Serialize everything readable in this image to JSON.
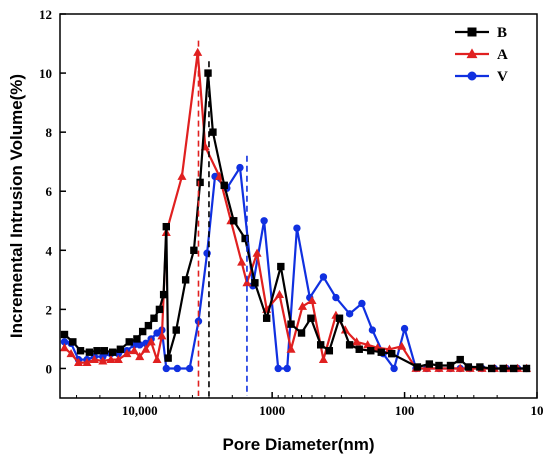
{
  "chart_data": {
    "type": "line",
    "title": "",
    "xlabel": "Pore Diameter(nm)",
    "ylabel": "Incremental Intrusion Volume(%)",
    "x_scale": "log",
    "x_reversed": true,
    "xlim": [
      10,
      40000
    ],
    "ylim": [
      -1,
      12
    ],
    "x_ticks": [
      {
        "value": 10000,
        "label": "10,000"
      },
      {
        "value": 1000,
        "label": "1000"
      },
      {
        "value": 100,
        "label": "100"
      },
      {
        "value": 10,
        "label": "10"
      }
    ],
    "y_ticks": [
      {
        "value": 0,
        "label": "0"
      },
      {
        "value": 2,
        "label": "2"
      },
      {
        "value": 4,
        "label": "4"
      },
      {
        "value": 6,
        "label": "6"
      },
      {
        "value": 8,
        "label": "8"
      },
      {
        "value": 10,
        "label": "10"
      },
      {
        "value": 12,
        "label": "12"
      }
    ],
    "grid": false,
    "legend_position": "top-right",
    "series": [
      {
        "name": "B",
        "color": "#000000",
        "marker": "square",
        "peak_line_x": 3000,
        "points": [
          [
            37000,
            1.15
          ],
          [
            32000,
            0.9
          ],
          [
            28000,
            0.6
          ],
          [
            24000,
            0.55
          ],
          [
            21000,
            0.6
          ],
          [
            18500,
            0.6
          ],
          [
            16000,
            0.55
          ],
          [
            14000,
            0.65
          ],
          [
            12000,
            0.9
          ],
          [
            10500,
            1.0
          ],
          [
            9500,
            1.25
          ],
          [
            8600,
            1.45
          ],
          [
            7800,
            1.7
          ],
          [
            7100,
            2.0
          ],
          [
            6600,
            2.5
          ],
          [
            6300,
            4.8
          ],
          [
            6100,
            0.35
          ],
          [
            5300,
            1.3
          ],
          [
            4500,
            3.0
          ],
          [
            3900,
            4.0
          ],
          [
            3500,
            6.3
          ],
          [
            3050,
            10.0
          ],
          [
            2800,
            8.0
          ],
          [
            2300,
            6.2
          ],
          [
            1950,
            5.0
          ],
          [
            1600,
            4.4
          ],
          [
            1350,
            2.9
          ],
          [
            1100,
            1.7
          ],
          [
            860,
            3.45
          ],
          [
            720,
            1.5
          ],
          [
            600,
            1.2
          ],
          [
            510,
            1.7
          ],
          [
            430,
            0.8
          ],
          [
            370,
            0.6
          ],
          [
            310,
            1.7
          ],
          [
            260,
            0.8
          ],
          [
            220,
            0.65
          ],
          [
            180,
            0.6
          ],
          [
            150,
            0.55
          ],
          [
            125,
            0.5
          ],
          [
            80,
            0.05
          ],
          [
            65,
            0.15
          ],
          [
            55,
            0.1
          ],
          [
            45,
            0.1
          ],
          [
            38,
            0.3
          ],
          [
            33,
            0.05
          ],
          [
            27,
            0.05
          ],
          [
            22,
            0.0
          ],
          [
            18,
            0.0
          ],
          [
            15,
            0.0
          ],
          [
            12,
            0.0
          ]
        ]
      },
      {
        "name": "A",
        "color": "#e02020",
        "marker": "triangle",
        "peak_line_x": 3600,
        "points": [
          [
            37000,
            0.7
          ],
          [
            33000,
            0.5
          ],
          [
            29000,
            0.2
          ],
          [
            25000,
            0.2
          ],
          [
            22000,
            0.3
          ],
          [
            19000,
            0.25
          ],
          [
            16500,
            0.3
          ],
          [
            14500,
            0.3
          ],
          [
            12500,
            0.5
          ],
          [
            11000,
            0.6
          ],
          [
            10000,
            0.4
          ],
          [
            9000,
            0.65
          ],
          [
            8200,
            0.9
          ],
          [
            7400,
            0.3
          ],
          [
            6800,
            1.1
          ],
          [
            6300,
            4.6
          ],
          [
            4800,
            6.5
          ],
          [
            3650,
            10.7
          ],
          [
            3200,
            7.5
          ],
          [
            2500,
            6.5
          ],
          [
            2050,
            5.0
          ],
          [
            1700,
            3.6
          ],
          [
            1550,
            2.9
          ],
          [
            1300,
            3.9
          ],
          [
            1100,
            2.0
          ],
          [
            880,
            2.5
          ],
          [
            720,
            0.65
          ],
          [
            590,
            2.1
          ],
          [
            500,
            2.3
          ],
          [
            410,
            0.3
          ],
          [
            330,
            1.8
          ],
          [
            280,
            1.3
          ],
          [
            230,
            0.9
          ],
          [
            190,
            0.8
          ],
          [
            160,
            0.7
          ],
          [
            130,
            0.65
          ],
          [
            105,
            0.75
          ],
          [
            82,
            0.0
          ],
          [
            68,
            0.0
          ],
          [
            55,
            0.0
          ],
          [
            45,
            0.0
          ],
          [
            38,
            0.0
          ],
          [
            32,
            0.0
          ],
          [
            26,
            0.0
          ],
          [
            21,
            0.0
          ],
          [
            17,
            0.0
          ],
          [
            14,
            0.0
          ],
          [
            12,
            0.0
          ]
        ]
      },
      {
        "name": "V",
        "color": "#1030e0",
        "marker": "circle",
        "peak_line_x": 1550,
        "points": [
          [
            37000,
            0.9
          ],
          [
            33000,
            0.85
          ],
          [
            29000,
            0.3
          ],
          [
            25000,
            0.3
          ],
          [
            22000,
            0.4
          ],
          [
            19000,
            0.4
          ],
          [
            16500,
            0.5
          ],
          [
            14500,
            0.5
          ],
          [
            12500,
            0.6
          ],
          [
            11000,
            0.8
          ],
          [
            10000,
            0.8
          ],
          [
            9000,
            0.85
          ],
          [
            8200,
            1.0
          ],
          [
            7400,
            1.2
          ],
          [
            6800,
            1.3
          ],
          [
            6300,
            0.0
          ],
          [
            5200,
            0.0
          ],
          [
            4200,
            0.0
          ],
          [
            3600,
            1.6
          ],
          [
            3100,
            3.9
          ],
          [
            2700,
            6.5
          ],
          [
            2200,
            6.1
          ],
          [
            1750,
            6.8
          ],
          [
            1400,
            2.8
          ],
          [
            1150,
            5.0
          ],
          [
            900,
            0.0
          ],
          [
            770,
            0.0
          ],
          [
            650,
            4.75
          ],
          [
            520,
            2.4
          ],
          [
            410,
            3.1
          ],
          [
            330,
            2.4
          ],
          [
            260,
            1.85
          ],
          [
            210,
            2.2
          ],
          [
            175,
            1.3
          ],
          [
            145,
            0.5
          ],
          [
            120,
            0.0
          ],
          [
            100,
            1.35
          ],
          [
            82,
            0.0
          ],
          [
            68,
            0.0
          ],
          [
            55,
            0.0
          ],
          [
            45,
            0.0
          ],
          [
            38,
            0.0
          ],
          [
            32,
            0.0
          ],
          [
            26,
            0.0
          ],
          [
            21,
            0.0
          ],
          [
            17,
            0.0
          ],
          [
            14,
            0.0
          ],
          [
            12,
            0.0
          ]
        ]
      }
    ]
  }
}
